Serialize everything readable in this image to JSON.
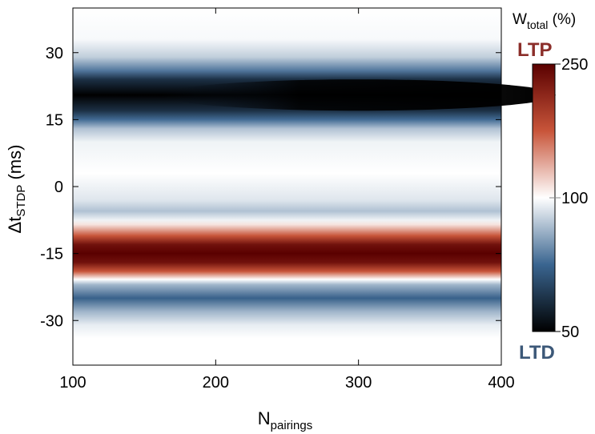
{
  "chart_data": {
    "type": "heatmap",
    "title": "",
    "xlabel_main": "N",
    "xlabel_sub": "pairings",
    "ylabel_main": "Δt",
    "ylabel_sub": "STDP",
    "ylabel_unit": " (ms)",
    "x_ticks": [
      100,
      200,
      300,
      400
    ],
    "x_tick_labels": [
      "100",
      "200",
      "300",
      "400"
    ],
    "xlim": [
      100,
      400
    ],
    "y_ticks": [
      30,
      15,
      0,
      -15,
      -30
    ],
    "y_tick_labels": [
      "30",
      "15",
      "0",
      "-15",
      "-30"
    ],
    "ylim": [
      -40,
      40
    ],
    "colorbar": {
      "title_main": "W",
      "title_sub": "total",
      "title_unit": " (%)",
      "ticks": [
        250,
        100,
        50
      ],
      "tick_labels": [
        "250",
        "100",
        "50"
      ],
      "range": [
        50,
        250
      ],
      "top_label": "LTP",
      "bottom_label": "LTD",
      "colors_low_mid_high": [
        "#000000",
        "#3a6590",
        "#ffffff",
        "#c8553a",
        "#5a0000"
      ]
    },
    "y_profile": [
      {
        "y": 40,
        "value": 100
      },
      {
        "y": 33,
        "value": 99
      },
      {
        "y": 29,
        "value": 92
      },
      {
        "y": 26,
        "value": 78
      },
      {
        "y": 24,
        "value": 62
      },
      {
        "y": 20.5,
        "value": 50
      },
      {
        "y": 17,
        "value": 62
      },
      {
        "y": 15,
        "value": 76
      },
      {
        "y": 13,
        "value": 90
      },
      {
        "y": 10,
        "value": 98
      },
      {
        "y": 3,
        "value": 100
      },
      {
        "y": -3,
        "value": 96
      },
      {
        "y": -5.5,
        "value": 90
      },
      {
        "y": -7.5,
        "value": 98
      },
      {
        "y": -8.5,
        "value": 112
      },
      {
        "y": -11,
        "value": 175
      },
      {
        "y": -13,
        "value": 235
      },
      {
        "y": -15,
        "value": 250
      },
      {
        "y": -17,
        "value": 235
      },
      {
        "y": -19,
        "value": 175
      },
      {
        "y": -20.8,
        "value": 100
      },
      {
        "y": -22,
        "value": 88
      },
      {
        "y": -25,
        "value": 74
      },
      {
        "y": -28,
        "value": 88
      },
      {
        "y": -31,
        "value": 97
      },
      {
        "y": -34,
        "value": 100
      },
      {
        "y": -40,
        "value": 100
      }
    ]
  }
}
